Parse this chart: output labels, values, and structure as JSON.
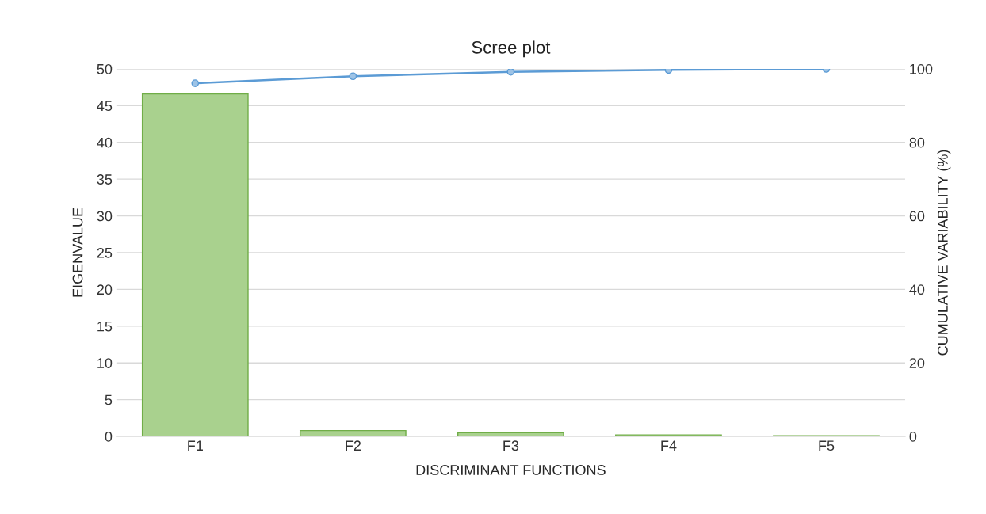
{
  "chart_data": {
    "type": "bar",
    "title": "Scree plot",
    "xlabel": "DISCRIMINANT FUNCTIONS",
    "ylabel": "EIGENVALUE",
    "y2label": "CUMULATIVE VARIABILITY (%)",
    "categories": [
      "F1",
      "F2",
      "F3",
      "F4",
      "F5"
    ],
    "series": [
      {
        "color": "#a9d18e",
        "values": [
          46.6,
          0.8,
          0.5,
          0.2,
          0.1
        ]
      },
      {
        "type": "line",
        "axis": "y2",
        "color": "#5b9bd5",
        "values": [
          96.1,
          98.0,
          99.2,
          99.7,
          100
        ]
      }
    ],
    "ylim": [
      0,
      50
    ],
    "yticks": [
      0,
      5,
      10,
      15,
      20,
      25,
      30,
      35,
      40,
      45,
      50
    ],
    "y2lim": [
      0,
      100
    ],
    "y2ticks": [
      0,
      20,
      40,
      60,
      80,
      100
    ],
    "grid": "y",
    "marker": "circle",
    "line_style": "solid",
    "legend": false
  }
}
